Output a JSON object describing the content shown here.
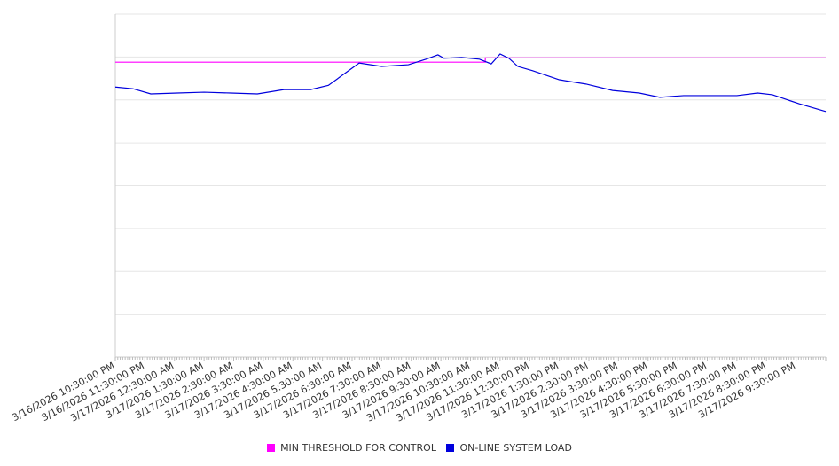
{
  "chart_data": {
    "type": "line",
    "title": "",
    "xlabel": "",
    "ylabel": "",
    "x_ticks": [
      "3/16/2026 10:30:00 PM",
      "3/16/2026 11:30:00 PM",
      "3/17/2026 12:30:00 AM",
      "3/17/2026 1:30:00 AM",
      "3/17/2026 2:30:00 AM",
      "3/17/2026 3:30:00 AM",
      "3/17/2026 4:30:00 AM",
      "3/17/2026 5:30:00 AM",
      "3/17/2026 6:30:00 AM",
      "3/17/2026 7:30:00 AM",
      "3/17/2026 8:30:00 AM",
      "3/17/2026 9:30:00 AM",
      "3/17/2026 10:30:00 AM",
      "3/17/2026 11:30:00 AM",
      "3/17/2026 12:30:00 PM",
      "3/17/2026 1:30:00 PM",
      "3/17/2026 2:30:00 PM",
      "3/17/2026 3:30:00 PM",
      "3/17/2026 4:30:00 PM",
      "3/17/2026 5:30:00 PM",
      "3/17/2026 6:30:00 PM",
      "3/17/2026 7:30:00 PM",
      "3/17/2026 8:30:00 PM",
      "3/17/2026 9:30:00 PM"
    ],
    "xlim": [
      0,
      24
    ],
    "ylim": [
      0,
      8
    ],
    "y_gridlines": 8,
    "grid": true,
    "legend_position": "bottom",
    "series": [
      {
        "name": "MIN THRESHOLD FOR CONTROL",
        "color": "#ff00ff",
        "step": true,
        "x": [
          0,
          12.5,
          12.5,
          24
        ],
        "y": [
          6.88,
          6.88,
          6.98,
          6.98
        ]
      },
      {
        "name": "ON-LINE SYSTEM LOAD",
        "color": "#0000dd",
        "x": [
          0,
          0.6,
          1.2,
          2.1,
          3.0,
          3.9,
          4.8,
          5.7,
          6.6,
          7.2,
          7.8,
          8.24,
          9.0,
          9.9,
          10.5,
          10.9,
          11.1,
          11.7,
          12.3,
          12.7,
          13.0,
          13.3,
          13.6,
          14.1,
          15.0,
          15.9,
          16.8,
          17.7,
          18.4,
          19.2,
          20.1,
          21.0,
          21.7,
          22.2,
          23.1,
          24.0
        ],
        "y": [
          6.3,
          6.26,
          6.14,
          6.16,
          6.18,
          6.16,
          6.14,
          6.24,
          6.24,
          6.34,
          6.64,
          6.86,
          6.78,
          6.82,
          6.95,
          7.05,
          6.97,
          6.99,
          6.95,
          6.84,
          7.07,
          6.97,
          6.78,
          6.68,
          6.47,
          6.37,
          6.22,
          6.16,
          6.06,
          6.1,
          6.1,
          6.1,
          6.16,
          6.12,
          5.91,
          5.73
        ]
      }
    ]
  }
}
